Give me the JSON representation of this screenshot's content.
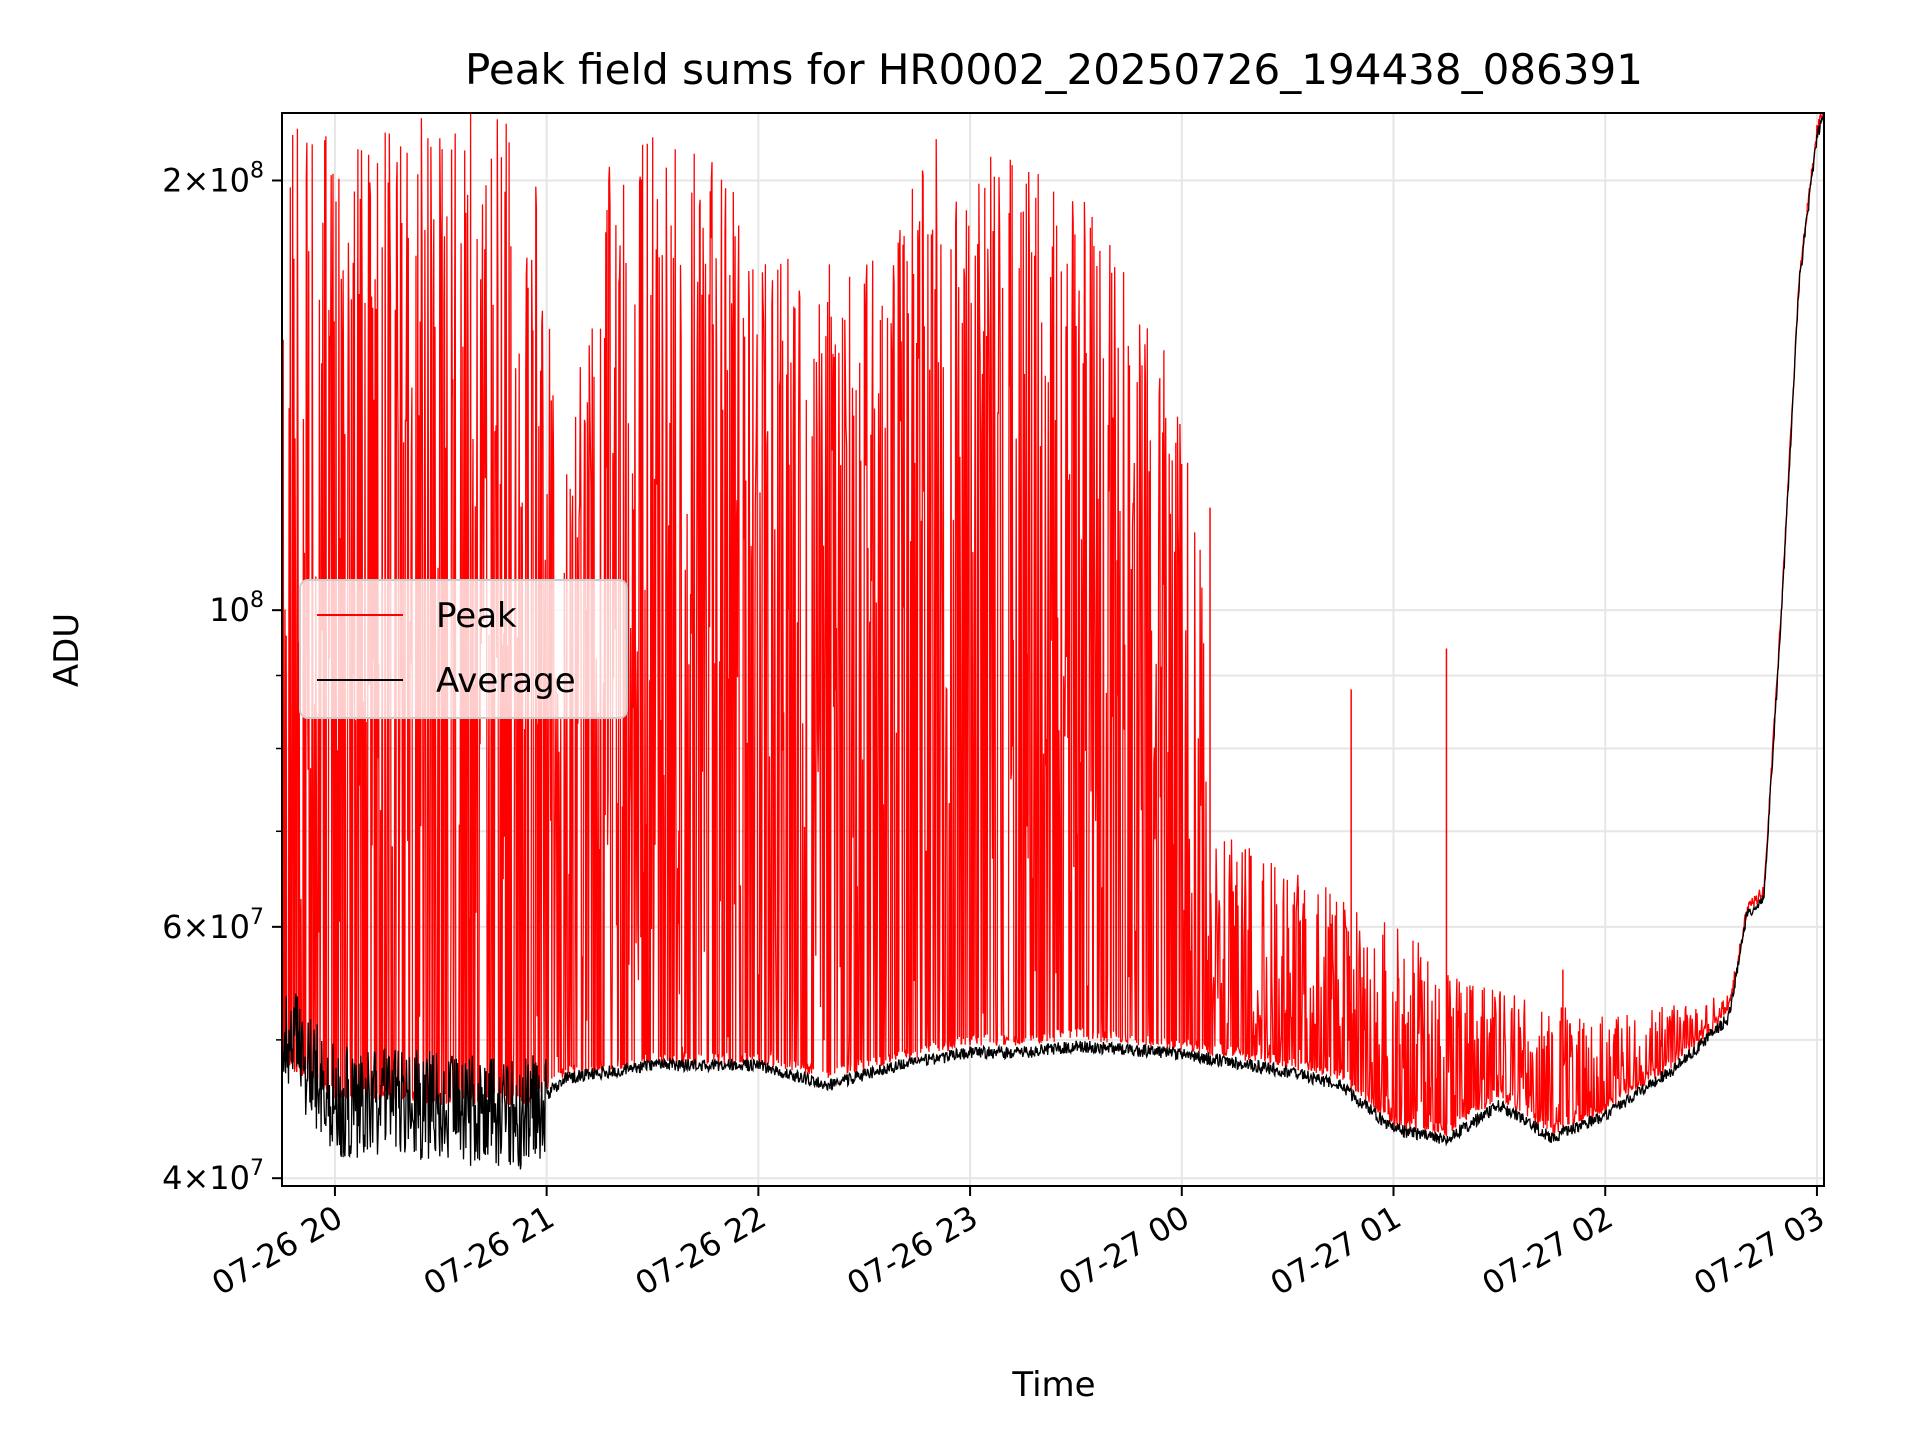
{
  "chart_data": {
    "type": "line",
    "title": "Peak field sums for HR0002_20250726_194438_086391",
    "xlabel": "Time",
    "ylabel": "ADU",
    "yscale": "log",
    "grid": true,
    "legend_position": "center-left",
    "x_range": [
      "2025-07-26 19:45",
      "2025-07-27 03:02"
    ],
    "ylim": [
      39500000,
      223000000
    ],
    "x_ticks": [
      {
        "label": "07-26 20",
        "value": "2025-07-26 20:00"
      },
      {
        "label": "07-26 21",
        "value": "2025-07-26 21:00"
      },
      {
        "label": "07-26 22",
        "value": "2025-07-26 22:00"
      },
      {
        "label": "07-26 23",
        "value": "2025-07-26 23:00"
      },
      {
        "label": "07-27 00",
        "value": "2025-07-27 00:00"
      },
      {
        "label": "07-27 01",
        "value": "2025-07-27 01:00"
      },
      {
        "label": "07-27 02",
        "value": "2025-07-27 02:00"
      },
      {
        "label": "07-27 03",
        "value": "2025-07-27 03:00"
      }
    ],
    "y_ticks": [
      {
        "value": 40000000,
        "base": "4",
        "mantissa": "10",
        "exp": "7"
      },
      {
        "value": 60000000,
        "base": "6",
        "mantissa": "10",
        "exp": "7"
      },
      {
        "value": 100000000,
        "base": "",
        "mantissa": "10",
        "exp": "8"
      },
      {
        "value": 200000000,
        "base": "2",
        "mantissa": "10",
        "exp": "8"
      }
    ],
    "y_minor_ticks": [
      50000000,
      70000000,
      80000000,
      90000000
    ],
    "series": [
      {
        "name": "Peak",
        "color": "#ff0000",
        "baseline": [
          [
            "2025-07-26 19:45",
            48000000
          ],
          [
            "2025-07-26 20:00",
            45500000
          ],
          [
            "2025-07-26 20:30",
            45000000
          ],
          [
            "2025-07-26 20:55",
            45000000
          ],
          [
            "2025-07-26 21:05",
            47000000
          ],
          [
            "2025-07-26 21:30",
            48000000
          ],
          [
            "2025-07-26 22:00",
            48000000
          ],
          [
            "2025-07-26 22:20",
            47000000
          ],
          [
            "2025-07-26 22:40",
            48200000
          ],
          [
            "2025-07-26 23:00",
            49500000
          ],
          [
            "2025-07-26 23:15",
            49500000
          ],
          [
            "2025-07-26 23:30",
            50000000
          ],
          [
            "2025-07-27 00:00",
            49200000
          ],
          [
            "2025-07-27 00:30",
            47800000
          ],
          [
            "2025-07-27 00:45",
            46800000
          ],
          [
            "2025-07-27 01:00",
            43500000
          ],
          [
            "2025-07-27 01:15",
            42800000
          ],
          [
            "2025-07-27 01:30",
            45500000
          ],
          [
            "2025-07-27 01:45",
            42900000
          ],
          [
            "2025-07-27 02:00",
            44500000
          ],
          [
            "2025-07-27 02:20",
            48000000
          ],
          [
            "2025-07-27 02:35",
            52000000
          ],
          [
            "2025-07-27 02:40",
            61000000
          ],
          [
            "2025-07-27 02:45",
            63000000
          ],
          [
            "2025-07-27 02:50",
            100000000
          ],
          [
            "2025-07-27 02:55",
            170000000
          ],
          [
            "2025-07-27 03:00",
            215000000
          ],
          [
            "2025-07-27 03:02",
            222000000
          ]
        ],
        "spike_envelope": [
          [
            "2025-07-26 19:45",
            223000000
          ],
          [
            "2025-07-26 20:55",
            223000000
          ],
          [
            "2025-07-26 21:05",
            125000000
          ],
          [
            "2025-07-26 21:20",
            223000000
          ],
          [
            "2025-07-26 21:45",
            210000000
          ],
          [
            "2025-07-26 22:10",
            175000000
          ],
          [
            "2025-07-26 22:30",
            175000000
          ],
          [
            "2025-07-26 22:50",
            215000000
          ],
          [
            "2025-07-26 23:30",
            200000000
          ],
          [
            "2025-07-26 23:55",
            155000000
          ],
          [
            "2025-07-27 00:05",
            118000000
          ],
          [
            "2025-07-27 00:10",
            70000000
          ],
          [
            "2025-07-27 00:55",
            62000000
          ],
          [
            "2025-07-27 01:20",
            55000000
          ],
          [
            "2025-07-27 02:00",
            52000000
          ],
          [
            "2025-07-27 02:40",
            54000000
          ]
        ],
        "notable_spikes": [
          [
            "2025-07-27 00:08",
            118000000
          ],
          [
            "2025-07-27 00:18",
            68000000
          ],
          [
            "2025-07-27 00:33",
            64000000
          ],
          [
            "2025-07-27 00:48",
            88000000
          ],
          [
            "2025-07-27 01:15",
            94000000
          ],
          [
            "2025-07-27 01:48",
            56000000
          ]
        ]
      },
      {
        "name": "Average",
        "color": "#000000",
        "baseline": [
          [
            "2025-07-26 19:45",
            51000000
          ],
          [
            "2025-07-26 20:00",
            45500000
          ],
          [
            "2025-07-26 20:30",
            45000000
          ],
          [
            "2025-07-26 20:55",
            44500000
          ],
          [
            "2025-07-26 21:05",
            47000000
          ],
          [
            "2025-07-26 21:30",
            48000000
          ],
          [
            "2025-07-26 22:00",
            48000000
          ],
          [
            "2025-07-26 22:20",
            46500000
          ],
          [
            "2025-07-26 22:40",
            48000000
          ],
          [
            "2025-07-26 23:00",
            49000000
          ],
          [
            "2025-07-26 23:15",
            49000000
          ],
          [
            "2025-07-26 23:30",
            49500000
          ],
          [
            "2025-07-27 00:00",
            48900000
          ],
          [
            "2025-07-27 00:30",
            47500000
          ],
          [
            "2025-07-27 00:45",
            46500000
          ],
          [
            "2025-07-27 01:00",
            43300000
          ],
          [
            "2025-07-27 01:15",
            42600000
          ],
          [
            "2025-07-27 01:30",
            45000000
          ],
          [
            "2025-07-27 01:45",
            42700000
          ],
          [
            "2025-07-27 02:00",
            44300000
          ],
          [
            "2025-07-27 02:20",
            47800000
          ],
          [
            "2025-07-27 02:35",
            51800000
          ],
          [
            "2025-07-27 02:40",
            61000000
          ],
          [
            "2025-07-27 02:45",
            63000000
          ],
          [
            "2025-07-27 02:50",
            100000000
          ],
          [
            "2025-07-27 02:55",
            170000000
          ],
          [
            "2025-07-27 03:00",
            215000000
          ],
          [
            "2025-07-27 03:02",
            222000000
          ]
        ]
      }
    ]
  }
}
